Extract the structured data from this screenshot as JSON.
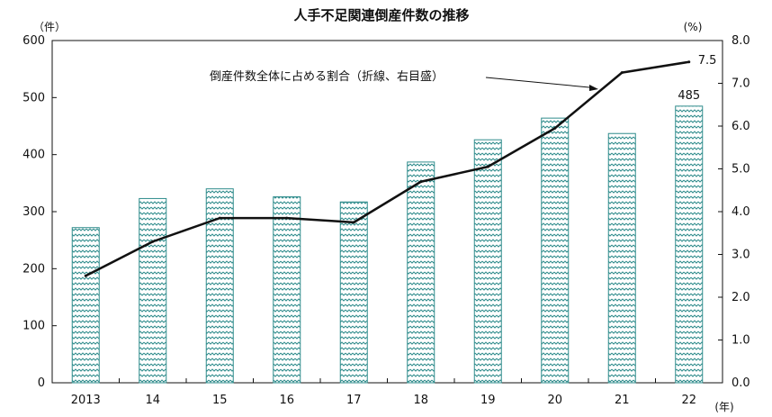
{
  "chart_data": {
    "type": "bar+line",
    "title": "人手不足関連倒産件数の推移",
    "left_axis_unit": "（件）",
    "right_axis_unit": "(%)",
    "x_axis_unit": "(年)",
    "categories": [
      "2013",
      "14",
      "15",
      "16",
      "17",
      "18",
      "19",
      "20",
      "21",
      "22"
    ],
    "bar_series": {
      "values": [
        272,
        323,
        340,
        326,
        317,
        387,
        426,
        464,
        437,
        485
      ],
      "axis": "left",
      "color": "#2f8c8c"
    },
    "line_series": {
      "name": "倒産件数全体に占める割合（折線、右目盛）",
      "values": [
        2.5,
        3.3,
        3.85,
        3.85,
        3.75,
        4.7,
        5.05,
        5.95,
        7.25,
        7.5
      ],
      "axis": "right",
      "color": "#111111"
    },
    "left_ylim": [
      0,
      600
    ],
    "left_ticks": [
      "0",
      "100",
      "200",
      "300",
      "400",
      "500",
      "600"
    ],
    "right_ylim": [
      0,
      8
    ],
    "right_ticks": [
      "0.0",
      "1.0",
      "2.0",
      "3.0",
      "4.0",
      "5.0",
      "6.0",
      "7.0",
      "8.0"
    ],
    "data_labels": [
      {
        "series": "bar",
        "index": 9,
        "text": "485"
      },
      {
        "series": "line",
        "index": 9,
        "text": "7.5"
      }
    ],
    "grid": false
  }
}
